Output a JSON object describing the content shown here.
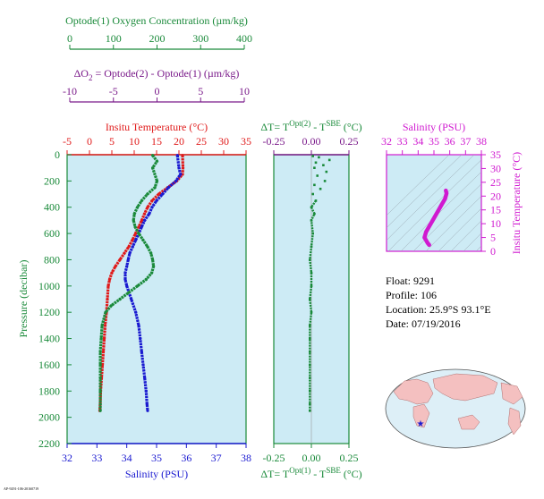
{
  "colors": {
    "green": "#1a8a3a",
    "purple": "#7a1a8a",
    "red": "#e01a1a",
    "blue": "#1a1ad0",
    "magenta": "#d01ad0",
    "panel_bg": "#cdebf5",
    "land": "#f4c0c0",
    "ocean": "#ddeff7"
  },
  "scales": {
    "oxygen": {
      "label": "Optode(1) Oxygen Concentration (µm/kg)",
      "ticks": [
        "0",
        "100",
        "200",
        "300",
        "400"
      ],
      "range": [
        0,
        400
      ]
    },
    "delta_o2": {
      "label_left": "ΔO",
      "label_sub": "2",
      "label_right": " = Optode(2) - Optode(1)   (µm/kg)",
      "ticks": [
        "-10",
        "-5",
        "0",
        "5",
        "10"
      ],
      "range": [
        -10,
        10
      ]
    },
    "temperature": {
      "label": "Insitu Temperature (°C)",
      "ticks": [
        "-5",
        "0",
        "5",
        "10",
        "15",
        "20",
        "25",
        "30",
        "35"
      ],
      "range": [
        -5,
        35
      ]
    },
    "salinity_bottom": {
      "label": "Salinity (PSU)",
      "ticks": [
        "32",
        "33",
        "34",
        "35",
        "36",
        "37",
        "38"
      ],
      "range": [
        32,
        38
      ]
    },
    "pressure": {
      "label": "Pressure (decibar)",
      "ticks": [
        "0",
        "200",
        "400",
        "600",
        "800",
        "1000",
        "1200",
        "1400",
        "1600",
        "1800",
        "2000",
        "2200"
      ],
      "range": [
        0,
        2200
      ]
    },
    "delta_t_top": {
      "label_a": "ΔT= T",
      "label_sup1": "Opt(2)",
      "label_b": " - T",
      "label_sup2": "SBE",
      "label_c": " (°C)",
      "ticks": [
        "-0.25",
        "0.00",
        "0.25"
      ],
      "range": [
        -0.25,
        0.25
      ]
    },
    "delta_t_bottom": {
      "label_a": "ΔT= T",
      "label_sup1": "Opt(1)",
      "label_b": " - T",
      "label_sup2": "SBE",
      "label_c": " (°C)",
      "ticks": [
        "-0.25",
        "0.00",
        "0.25"
      ],
      "range": [
        -0.25,
        0.25
      ]
    },
    "ts_salinity": {
      "label": "Salinity (PSU)",
      "ticks": [
        "32",
        "33",
        "34",
        "35",
        "36",
        "37",
        "38"
      ],
      "range": [
        32,
        38
      ]
    },
    "ts_temperature": {
      "label": "Insitu Temperature (°C)",
      "ticks": [
        "0",
        "5",
        "10",
        "15",
        "20",
        "25",
        "30",
        "35"
      ],
      "range": [
        0,
        35
      ]
    }
  },
  "info": {
    "float": "Float:  9291",
    "profile": "Profile:  106",
    "location": "Location:  25.9°S  93.1°E",
    "date": "Date:  07/19/2016"
  },
  "footnote": "AP-9291-106-20160719",
  "chart_data": [
    {
      "type": "line",
      "panel": "main profiles",
      "y_axis": "pressure (decibar)",
      "ylim": [
        2200,
        0
      ],
      "series": [
        {
          "name": "Insitu Temperature (°C)",
          "color": "red",
          "points": [
            [
              20.8,
              5
            ],
            [
              20.9,
              100
            ],
            [
              20.8,
              150
            ],
            [
              19.5,
              200
            ],
            [
              17.5,
              250
            ],
            [
              15.5,
              300
            ],
            [
              14.0,
              350
            ],
            [
              13.0,
              400
            ],
            [
              12.3,
              450
            ],
            [
              11.7,
              500
            ],
            [
              11.0,
              550
            ],
            [
              10.3,
              600
            ],
            [
              9.6,
              650
            ],
            [
              8.8,
              700
            ],
            [
              7.8,
              750
            ],
            [
              6.8,
              800
            ],
            [
              5.8,
              850
            ],
            [
              5.0,
              900
            ],
            [
              4.5,
              950
            ],
            [
              4.2,
              1000
            ],
            [
              4.0,
              1100
            ],
            [
              3.8,
              1200
            ],
            [
              3.5,
              1300
            ],
            [
              3.3,
              1400
            ],
            [
              3.1,
              1500
            ],
            [
              2.9,
              1600
            ],
            [
              2.7,
              1700
            ],
            [
              2.5,
              1800
            ],
            [
              2.4,
              1900
            ],
            [
              2.3,
              1950
            ]
          ]
        },
        {
          "name": "Salinity (PSU)",
          "color": "blue",
          "points": [
            [
              35.7,
              5
            ],
            [
              35.75,
              100
            ],
            [
              35.8,
              150
            ],
            [
              35.65,
              200
            ],
            [
              35.4,
              250
            ],
            [
              35.2,
              300
            ],
            [
              35.0,
              350
            ],
            [
              34.85,
              400
            ],
            [
              34.75,
              450
            ],
            [
              34.6,
              500
            ],
            [
              34.5,
              550
            ],
            [
              34.4,
              600
            ],
            [
              34.3,
              650
            ],
            [
              34.2,
              700
            ],
            [
              34.1,
              750
            ],
            [
              34.05,
              800
            ],
            [
              34.0,
              850
            ],
            [
              33.95,
              900
            ],
            [
              33.95,
              950
            ],
            [
              34.0,
              1000
            ],
            [
              34.15,
              1100
            ],
            [
              34.3,
              1200
            ],
            [
              34.4,
              1300
            ],
            [
              34.45,
              1400
            ],
            [
              34.5,
              1500
            ],
            [
              34.55,
              1600
            ],
            [
              34.6,
              1700
            ],
            [
              34.65,
              1800
            ],
            [
              34.68,
              1900
            ],
            [
              34.7,
              1950
            ]
          ]
        },
        {
          "name": "Optode(1) Oxygen Concentration (µm/kg)",
          "color": "green",
          "points": [
            [
              190,
              5
            ],
            [
              200,
              50
            ],
            [
              190,
              100
            ],
            [
              200,
              200
            ],
            [
              195,
              250
            ],
            [
              178,
              300
            ],
            [
              165,
              350
            ],
            [
              155,
              400
            ],
            [
              148,
              450
            ],
            [
              146,
              500
            ],
            [
              150,
              550
            ],
            [
              158,
              600
            ],
            [
              168,
              650
            ],
            [
              178,
              700
            ],
            [
              186,
              750
            ],
            [
              190,
              800
            ],
            [
              192,
              850
            ],
            [
              188,
              900
            ],
            [
              175,
              950
            ],
            [
              155,
              1000
            ],
            [
              135,
              1050
            ],
            [
              115,
              1100
            ],
            [
              95,
              1150
            ],
            [
              82,
              1200
            ],
            [
              74,
              1300
            ],
            [
              72,
              1400
            ],
            [
              70,
              1500
            ],
            [
              70,
              1600
            ],
            [
              70,
              1700
            ],
            [
              70,
              1800
            ],
            [
              70,
              1900
            ],
            [
              70,
              1950
            ]
          ]
        }
      ]
    },
    {
      "type": "scatter",
      "panel": "temperature difference",
      "x_axis": "ΔT (°C)",
      "y_axis": "pressure (decibar)",
      "xlim": [
        -0.25,
        0.25
      ],
      "ylim": [
        2200,
        0
      ],
      "series": [
        {
          "name": "ΔT",
          "color": "green",
          "points": [
            [
              0.01,
              10
            ],
            [
              0.05,
              20
            ],
            [
              0.12,
              40
            ],
            [
              0.03,
              60
            ],
            [
              0.08,
              80
            ],
            [
              0.02,
              100
            ],
            [
              0.1,
              130
            ],
            [
              0.04,
              160
            ],
            [
              0.09,
              200
            ],
            [
              0.02,
              230
            ],
            [
              0.06,
              260
            ],
            [
              0.01,
              300
            ],
            [
              0.03,
              350
            ],
            [
              0.0,
              400
            ],
            [
              0.02,
              450
            ],
            [
              0.0,
              500
            ],
            [
              0.01,
              600
            ],
            [
              0.0,
              700
            ],
            [
              -0.01,
              800
            ],
            [
              0.0,
              900
            ],
            [
              0.0,
              1000
            ],
            [
              -0.01,
              1100
            ],
            [
              0.0,
              1200
            ],
            [
              -0.01,
              1300
            ],
            [
              -0.01,
              1400
            ],
            [
              -0.01,
              1500
            ],
            [
              -0.01,
              1600
            ],
            [
              -0.01,
              1700
            ],
            [
              -0.01,
              1800
            ],
            [
              -0.01,
              1900
            ],
            [
              -0.01,
              1950
            ]
          ]
        }
      ]
    },
    {
      "type": "line",
      "panel": "T-S diagram",
      "x_axis": "Salinity (PSU)",
      "y_axis": "Insitu Temperature (°C)",
      "xlim": [
        32,
        38
      ],
      "ylim": [
        0,
        35
      ],
      "series": [
        {
          "name": "T-S",
          "color": "magenta",
          "points": [
            [
              34.7,
              2.3
            ],
            [
              34.6,
              3
            ],
            [
              34.5,
              4
            ],
            [
              34.4,
              5
            ],
            [
              34.5,
              7
            ],
            [
              34.7,
              9
            ],
            [
              34.9,
              11
            ],
            [
              35.1,
              13
            ],
            [
              35.3,
              15
            ],
            [
              35.5,
              17
            ],
            [
              35.7,
              19
            ],
            [
              35.8,
              21
            ],
            [
              35.75,
              22
            ]
          ]
        }
      ]
    }
  ]
}
